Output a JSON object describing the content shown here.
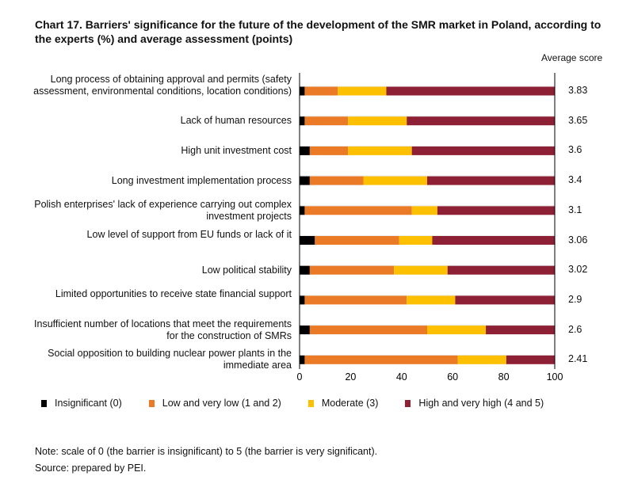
{
  "chart_data": {
    "type": "bar",
    "orientation": "horizontal-stacked",
    "title": "Chart 17.  Barriers' significance for the future of the development of the SMR market in Poland, according to the experts (%) and average assessment (points)",
    "score_header": "Average score",
    "xlim": [
      0,
      100
    ],
    "xticks": [
      "0",
      "20",
      "40",
      "60",
      "80",
      "100"
    ],
    "categories": [
      "Long process of obtaining approval and permits (safety assessment, environmental conditions, location conditions)",
      "Lack of human resources",
      "High unit investment cost",
      "Long investment implementation process",
      "Polish enterprises' lack of experience carrying out complex investment projects",
      "Low level of support from EU funds or lack of it",
      "Low political stability",
      "Limited opportunities to receive state financial support",
      "Insufficient number of locations that meet the requirements for the construction of SMRs",
      "Social opposition to building nuclear power plants in the immediate area"
    ],
    "scores": [
      "3.83",
      "3.65",
      "3.6",
      "3.4",
      "3.1",
      "3.06",
      "3.02",
      "2.9",
      "2.6",
      "2.41"
    ],
    "series": [
      {
        "name": "Insignificant  (0)",
        "color": "#000000",
        "values": [
          2,
          2,
          4,
          4,
          2,
          6,
          4,
          2,
          4,
          2
        ]
      },
      {
        "name": "Low and very low (1 and 2)",
        "color": "#ea7a25",
        "values": [
          13,
          17,
          15,
          21,
          42,
          33,
          33,
          40,
          46,
          60
        ]
      },
      {
        "name": "Moderate (3)",
        "color": "#fdc000",
        "values": [
          19,
          23,
          25,
          25,
          10,
          13,
          21,
          19,
          23,
          19
        ]
      },
      {
        "name": "High and very high (4 and 5)",
        "color": "#8e2036",
        "values": [
          66,
          58,
          56,
          50,
          46,
          48,
          42,
          39,
          27,
          19
        ]
      }
    ],
    "legend": "bottom"
  },
  "notes": {
    "note": "Note: scale of 0 (the barrier is insignificant) to 5 (the barrier is very significant).",
    "source": "Source: prepared by PEI."
  }
}
